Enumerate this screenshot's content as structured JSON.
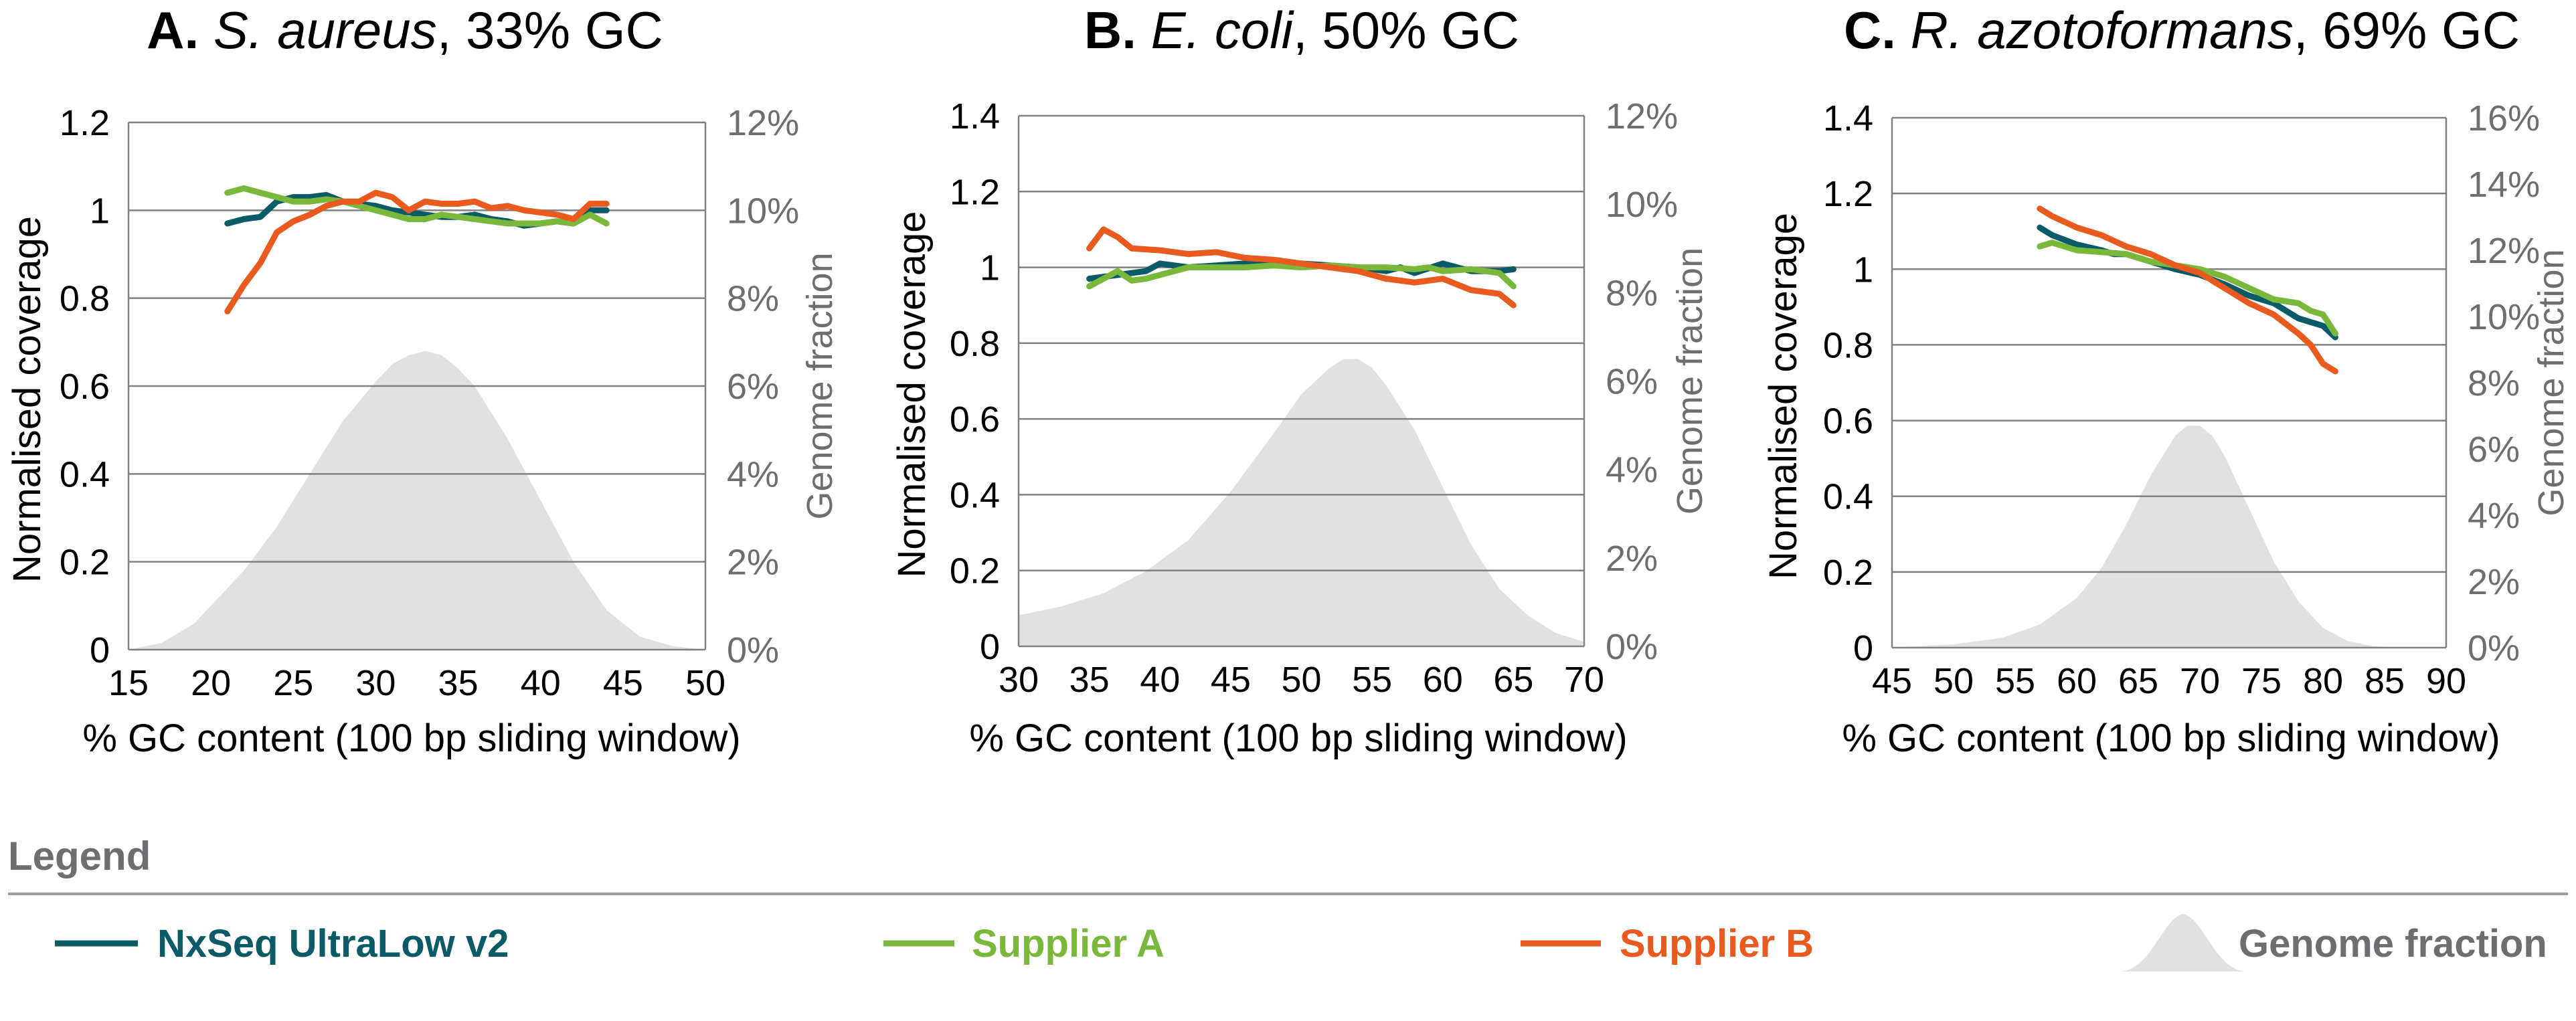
{
  "colors": {
    "nxseq": "#0b5a68",
    "supplier_a": "#7ab83c",
    "supplier_b": "#e85a1e",
    "genome_fill": "#e1e1e1",
    "grid": "#808080",
    "right_axis_text": "#6d6e71"
  },
  "legend": {
    "title": "Legend",
    "items": [
      {
        "label": "NxSeq UltraLow v2",
        "color_key": "nxseq",
        "shape": "line"
      },
      {
        "label": "Supplier A",
        "color_key": "supplier_a",
        "shape": "line"
      },
      {
        "label": "Supplier B",
        "color_key": "supplier_b",
        "shape": "line"
      },
      {
        "label": "Genome fraction",
        "color_key": "genome_fill",
        "shape": "area"
      }
    ]
  },
  "chart_data": [
    {
      "type": "line",
      "title": {
        "letter": "A.",
        "organism": "S. aureus",
        "gc": ", 33% GC"
      },
      "xlabel": "% GC content (100 bp sliding window)",
      "ylabel": "Normalised coverage",
      "ylabel_right": "Genome fraction",
      "xlim": [
        15,
        50
      ],
      "xticks": [
        "15",
        "20",
        "25",
        "30",
        "35",
        "40",
        "45",
        "50"
      ],
      "ylim": [
        0,
        1.2
      ],
      "yticks": [
        "0",
        "0.2",
        "0.4",
        "0.6",
        "0.8",
        "1",
        "1.2"
      ],
      "y2lim": [
        0,
        12
      ],
      "y2ticks": [
        "0%",
        "2%",
        "4%",
        "6%",
        "8%",
        "10%",
        "12%"
      ],
      "grid": true,
      "genome_fraction": {
        "x": [
          15,
          17,
          19,
          20,
          22,
          24,
          26,
          28,
          30,
          31,
          32,
          33,
          34,
          35,
          36,
          38,
          40,
          42,
          44,
          46,
          48,
          50
        ],
        "y": [
          0,
          0.15,
          0.6,
          1.0,
          1.8,
          2.8,
          4.0,
          5.2,
          6.1,
          6.5,
          6.7,
          6.8,
          6.7,
          6.4,
          6.0,
          4.8,
          3.4,
          2.0,
          0.9,
          0.3,
          0.08,
          0
        ]
      },
      "series": [
        {
          "name": "NxSeq UltraLow v2",
          "color_key": "nxseq",
          "x": [
            21,
            22,
            23,
            24,
            25,
            26,
            27,
            28,
            29,
            30,
            31,
            32,
            33,
            34,
            35,
            36,
            37,
            38,
            39,
            40,
            41,
            42,
            43,
            44
          ],
          "y": [
            0.97,
            0.98,
            0.985,
            1.02,
            1.03,
            1.03,
            1.035,
            1.02,
            1.015,
            1.01,
            1.0,
            0.995,
            0.99,
            0.985,
            0.985,
            0.99,
            0.98,
            0.975,
            0.965,
            0.97,
            0.975,
            0.97,
            1.0,
            1.0
          ]
        },
        {
          "name": "Supplier A",
          "color_key": "supplier_a",
          "x": [
            21,
            22,
            23,
            24,
            25,
            26,
            27,
            28,
            29,
            30,
            31,
            32,
            33,
            34,
            35,
            36,
            37,
            38,
            39,
            40,
            41,
            42,
            43,
            44
          ],
          "y": [
            1.04,
            1.05,
            1.04,
            1.03,
            1.02,
            1.02,
            1.025,
            1.02,
            1.01,
            1.0,
            0.99,
            0.98,
            0.98,
            0.99,
            0.985,
            0.98,
            0.975,
            0.97,
            0.97,
            0.97,
            0.975,
            0.97,
            0.99,
            0.97
          ]
        },
        {
          "name": "Supplier B",
          "color_key": "supplier_b",
          "x": [
            21,
            22,
            23,
            24,
            25,
            26,
            27,
            28,
            29,
            30,
            31,
            32,
            33,
            34,
            35,
            36,
            37,
            38,
            39,
            40,
            41,
            42,
            43,
            44
          ],
          "y": [
            0.77,
            0.83,
            0.88,
            0.95,
            0.975,
            0.99,
            1.01,
            1.02,
            1.02,
            1.04,
            1.03,
            1.0,
            1.02,
            1.015,
            1.015,
            1.02,
            1.005,
            1.01,
            1.0,
            0.995,
            0.99,
            0.98,
            1.015,
            1.015
          ]
        }
      ]
    },
    {
      "type": "line",
      "title": {
        "letter": "B.",
        "organism": "E. coli",
        "gc": ", 50% GC"
      },
      "xlabel": "% GC content (100 bp sliding window)",
      "ylabel": "Normalised coverage",
      "ylabel_right": "Genome fraction",
      "xlim": [
        30,
        70
      ],
      "xticks": [
        "30",
        "35",
        "40",
        "45",
        "50",
        "55",
        "60",
        "65",
        "70"
      ],
      "ylim": [
        0,
        1.4
      ],
      "yticks": [
        "0",
        "0.2",
        "0.4",
        "0.6",
        "0.8",
        "1",
        "1.2",
        "1.4"
      ],
      "y2lim": [
        0,
        12
      ],
      "y2ticks": [
        "0%",
        "2%",
        "4%",
        "6%",
        "8%",
        "10%",
        "12%"
      ],
      "grid": true,
      "genome_fraction": {
        "x": [
          30,
          33,
          36,
          39,
          42,
          45,
          48,
          50,
          52,
          53,
          54,
          55,
          56,
          58,
          60,
          62,
          64,
          66,
          68,
          70
        ],
        "y": [
          0.7,
          0.9,
          1.2,
          1.7,
          2.4,
          3.5,
          4.8,
          5.7,
          6.3,
          6.5,
          6.5,
          6.3,
          5.9,
          4.9,
          3.6,
          2.3,
          1.3,
          0.7,
          0.3,
          0.1
        ]
      },
      "series": [
        {
          "name": "NxSeq UltraLow v2",
          "color_key": "nxseq",
          "x": [
            35,
            37,
            39,
            40,
            42,
            44,
            46,
            48,
            50,
            52,
            54,
            56,
            57,
            58,
            60,
            62,
            64,
            65
          ],
          "y": [
            0.97,
            0.98,
            0.99,
            1.01,
            1.0,
            1.005,
            1.01,
            1.005,
            1.01,
            1.005,
            1.0,
            0.99,
            1.0,
            0.985,
            1.01,
            0.99,
            0.99,
            0.995
          ]
        },
        {
          "name": "Supplier A",
          "color_key": "supplier_a",
          "x": [
            35,
            36,
            37,
            38,
            39,
            40,
            42,
            44,
            46,
            48,
            50,
            52,
            54,
            56,
            58,
            59,
            60,
            62,
            64,
            65
          ],
          "y": [
            0.95,
            0.97,
            0.99,
            0.965,
            0.97,
            0.98,
            1.0,
            1.0,
            1.0,
            1.005,
            1.0,
            1.005,
            1.0,
            1.0,
            0.995,
            1.0,
            0.99,
            0.995,
            0.985,
            0.95
          ]
        },
        {
          "name": "Supplier B",
          "color_key": "supplier_b",
          "x": [
            35,
            36,
            37,
            38,
            40,
            42,
            44,
            46,
            48,
            50,
            52,
            54,
            56,
            58,
            60,
            62,
            64,
            65
          ],
          "y": [
            1.05,
            1.1,
            1.08,
            1.05,
            1.045,
            1.035,
            1.04,
            1.025,
            1.02,
            1.01,
            1.0,
            0.99,
            0.97,
            0.96,
            0.97,
            0.94,
            0.93,
            0.9
          ]
        }
      ]
    },
    {
      "type": "line",
      "title": {
        "letter": "C.",
        "organism": "R. azotoformans",
        "gc": ", 69% GC"
      },
      "xlabel": "% GC content (100 bp sliding window)",
      "ylabel": "Normalised coverage",
      "ylabel_right": "Genome fraction",
      "xlim": [
        45,
        90
      ],
      "xticks": [
        "45",
        "50",
        "55",
        "60",
        "65",
        "70",
        "75",
        "80",
        "85",
        "90"
      ],
      "ylim": [
        0,
        1.4
      ],
      "yticks": [
        "0",
        "0.2",
        "0.4",
        "0.6",
        "0.8",
        "1",
        "1.2",
        "1.4"
      ],
      "y2lim": [
        0,
        16
      ],
      "y2ticks": [
        "0%",
        "2%",
        "4%",
        "6%",
        "8%",
        "10%",
        "12%",
        "14%",
        "16%"
      ],
      "grid": true,
      "genome_fraction": {
        "x": [
          45,
          50,
          54,
          57,
          60,
          62,
          64,
          66,
          68,
          69,
          70,
          71,
          72,
          74,
          76,
          78,
          80,
          82,
          84,
          86
        ],
        "y": [
          0,
          0.1,
          0.3,
          0.7,
          1.5,
          2.4,
          3.7,
          5.2,
          6.4,
          6.7,
          6.7,
          6.4,
          5.8,
          4.2,
          2.6,
          1.4,
          0.6,
          0.2,
          0.05,
          0
        ]
      },
      "series": [
        {
          "name": "NxSeq UltraLow v2",
          "color_key": "nxseq",
          "x": [
            57,
            58,
            60,
            62,
            63,
            64,
            66,
            68,
            70,
            72,
            74,
            76,
            78,
            80,
            81
          ],
          "y": [
            1.11,
            1.09,
            1.065,
            1.05,
            1.04,
            1.04,
            1.02,
            1.0,
            0.985,
            0.96,
            0.93,
            0.91,
            0.87,
            0.85,
            0.82
          ]
        },
        {
          "name": "Supplier A",
          "color_key": "supplier_a",
          "x": [
            57,
            58,
            60,
            62,
            64,
            66,
            68,
            70,
            72,
            74,
            76,
            78,
            79,
            80,
            81
          ],
          "y": [
            1.06,
            1.07,
            1.05,
            1.045,
            1.04,
            1.02,
            1.01,
            1.0,
            0.98,
            0.95,
            0.92,
            0.91,
            0.89,
            0.88,
            0.83
          ]
        },
        {
          "name": "Supplier B",
          "color_key": "supplier_b",
          "x": [
            57,
            58,
            60,
            62,
            64,
            66,
            68,
            70,
            72,
            74,
            76,
            78,
            79,
            80,
            81
          ],
          "y": [
            1.16,
            1.14,
            1.11,
            1.09,
            1.06,
            1.04,
            1.01,
            0.99,
            0.95,
            0.91,
            0.88,
            0.83,
            0.8,
            0.75,
            0.73
          ]
        }
      ]
    }
  ]
}
